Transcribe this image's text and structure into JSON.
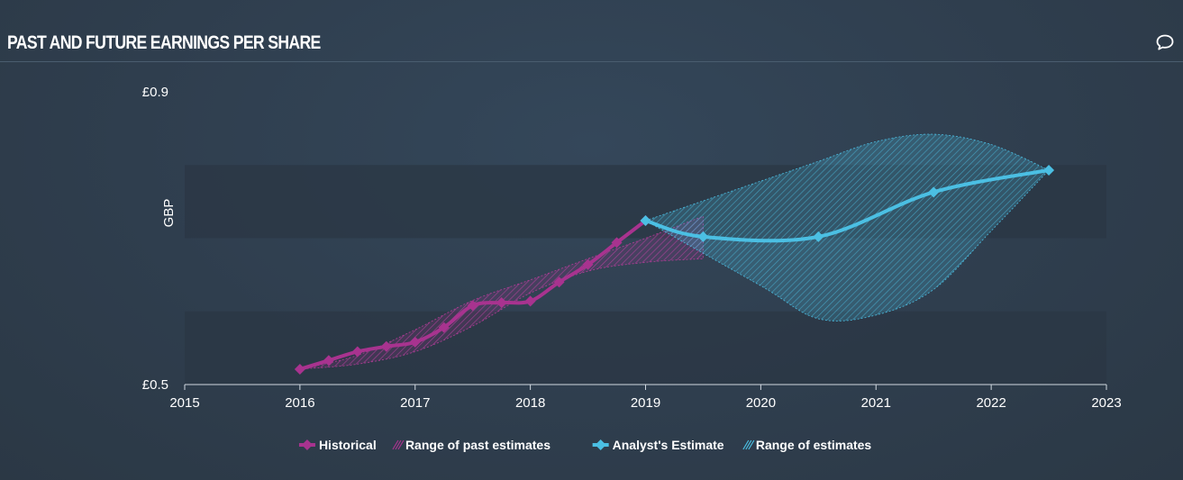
{
  "header": {
    "title": "PAST AND FUTURE EARNINGS PER SHARE"
  },
  "icons": {
    "comment": "speech-bubble-icon"
  },
  "colors": {
    "historical": "#a8338f",
    "estimate": "#4bbfe3",
    "band": "#2b3744",
    "axis": "#d0d8e0"
  },
  "chart_data": {
    "type": "line",
    "ylabel": "GBP",
    "ylim": [
      0.5,
      0.9
    ],
    "xlim": [
      2015,
      2023
    ],
    "x_ticks": [
      "2015",
      "2016",
      "2017",
      "2018",
      "2019",
      "2020",
      "2021",
      "2022",
      "2023"
    ],
    "y_ticks": [
      "£0.5",
      "£0.9"
    ],
    "legend_position": "bottom",
    "series": [
      {
        "name": "Historical",
        "x": [
          2016.0,
          2016.25,
          2016.5,
          2016.75,
          2017.0,
          2017.25,
          2017.5,
          2017.75,
          2018.0,
          2018.25,
          2018.5,
          2018.75,
          2019.0
        ],
        "y": [
          0.521,
          0.533,
          0.545,
          0.552,
          0.558,
          0.578,
          0.608,
          0.612,
          0.614,
          0.64,
          0.664,
          0.694,
          0.724
        ]
      },
      {
        "name": "Analyst's Estimate",
        "x": [
          2019.0,
          2019.5,
          2020.5,
          2021.5,
          2022.5
        ],
        "y": [
          0.724,
          0.702,
          0.702,
          0.763,
          0.793
        ]
      }
    ],
    "ranges": [
      {
        "name": "Range of past estimates",
        "x": [
          2016.0,
          2016.5,
          2017.0,
          2017.5,
          2018.0,
          2018.5,
          2019.0,
          2019.5
        ],
        "high": [
          0.521,
          0.54,
          0.575,
          0.615,
          0.643,
          0.672,
          0.7,
          0.73
        ],
        "low": [
          0.521,
          0.528,
          0.545,
          0.58,
          0.625,
          0.655,
          0.667,
          0.672
        ]
      },
      {
        "name": "Range of estimates",
        "x": [
          2019.0,
          2020.0,
          2020.5,
          2021.0,
          2021.5,
          2022.0,
          2022.5
        ],
        "high": [
          0.724,
          0.778,
          0.805,
          0.832,
          0.842,
          0.828,
          0.793
        ],
        "low": [
          0.724,
          0.635,
          0.59,
          0.595,
          0.63,
          0.71,
          0.793
        ]
      }
    ],
    "legend": [
      {
        "label": "Historical",
        "kind": "series",
        "color": "#a8338f"
      },
      {
        "label": "Range of past estimates",
        "kind": "range",
        "color": "#a8338f"
      },
      {
        "label": "Analyst's Estimate",
        "kind": "series",
        "color": "#4bbfe3"
      },
      {
        "label": "Range of estimates",
        "kind": "range",
        "color": "#4bbfe3"
      }
    ]
  }
}
